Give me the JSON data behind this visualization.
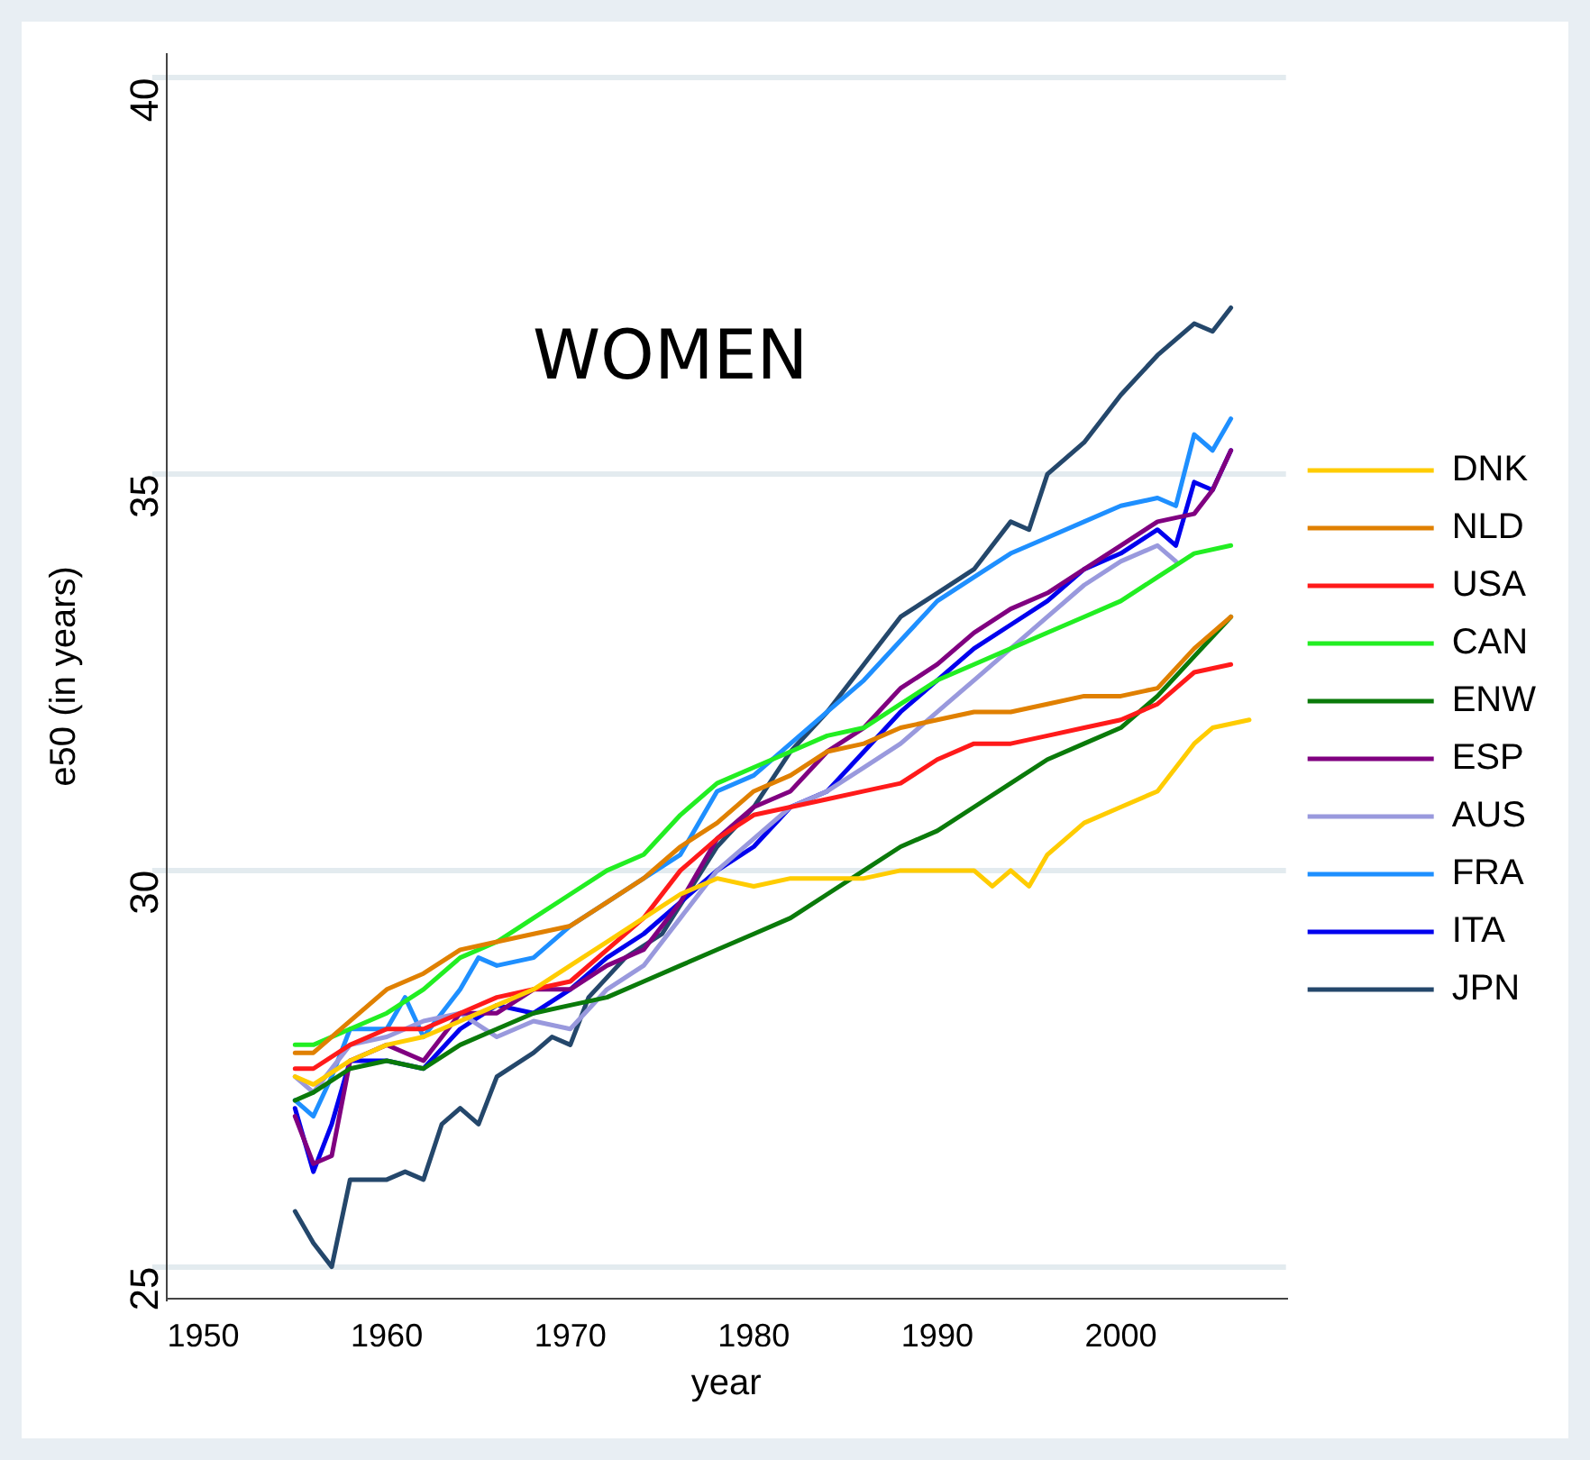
{
  "chart_data": {
    "type": "line",
    "xlabel": "year",
    "ylabel": "e50 (in years)",
    "annotations": [
      "WOMEN"
    ],
    "xlim": [
      1948,
      2009
    ],
    "xticks": [
      1950,
      1960,
      1970,
      1980,
      1990,
      2000
    ],
    "ylim": [
      24.6,
      40.3
    ],
    "yticks": [
      25,
      30,
      35,
      40
    ],
    "grid": "y",
    "legend": "right",
    "marker": "none",
    "line_style": "solid",
    "series": [
      {
        "name": "DNK",
        "color": "#ffcc00",
        "x": [
          1955,
          1956,
          1958,
          1960,
          1962,
          1964,
          1966,
          1968,
          1970,
          1972,
          1974,
          1976,
          1978,
          1980,
          1982,
          1984,
          1986,
          1988,
          1990,
          1992,
          1993,
          1994,
          1995,
          1996,
          1998,
          2000,
          2002,
          2004,
          2005,
          2007
        ],
        "values": [
          27.4,
          27.3,
          27.6,
          27.8,
          27.9,
          28.1,
          28.3,
          28.5,
          28.8,
          29.1,
          29.4,
          29.7,
          29.9,
          29.8,
          29.9,
          29.9,
          29.9,
          30.0,
          30.0,
          30.0,
          29.8,
          30.0,
          29.8,
          30.2,
          30.6,
          30.8,
          31.0,
          31.6,
          31.8,
          31.9
        ]
      },
      {
        "name": "NLD",
        "color": "#e08000",
        "x": [
          1955,
          1956,
          1958,
          1960,
          1962,
          1964,
          1966,
          1968,
          1970,
          1972,
          1974,
          1976,
          1978,
          1980,
          1982,
          1984,
          1986,
          1988,
          1990,
          1992,
          1994,
          1996,
          1998,
          2000,
          2002,
          2004,
          2006
        ],
        "values": [
          27.7,
          27.7,
          28.1,
          28.5,
          28.7,
          29.0,
          29.1,
          29.2,
          29.3,
          29.6,
          29.9,
          30.3,
          30.6,
          31.0,
          31.2,
          31.5,
          31.6,
          31.8,
          31.9,
          32.0,
          32.0,
          32.1,
          32.2,
          32.2,
          32.3,
          32.8,
          33.2
        ]
      },
      {
        "name": "USA",
        "color": "#ff1a1a",
        "x": [
          1955,
          1956,
          1958,
          1960,
          1962,
          1964,
          1966,
          1968,
          1970,
          1972,
          1974,
          1976,
          1978,
          1980,
          1982,
          1984,
          1986,
          1988,
          1990,
          1992,
          1994,
          1996,
          1998,
          2000,
          2002,
          2004,
          2006
        ],
        "values": [
          27.5,
          27.5,
          27.8,
          28.0,
          28.0,
          28.2,
          28.4,
          28.5,
          28.6,
          29.0,
          29.4,
          30.0,
          30.4,
          30.7,
          30.8,
          30.9,
          31.0,
          31.1,
          31.4,
          31.6,
          31.6,
          31.7,
          31.8,
          31.9,
          32.1,
          32.5,
          32.6
        ]
      },
      {
        "name": "CAN",
        "color": "#22ee22",
        "x": [
          1955,
          1956,
          1958,
          1960,
          1962,
          1964,
          1966,
          1968,
          1970,
          1972,
          1974,
          1976,
          1978,
          1980,
          1982,
          1984,
          1986,
          1988,
          1990,
          1992,
          1994,
          1996,
          1998,
          2000,
          2002,
          2004,
          2006
        ],
        "values": [
          27.8,
          27.8,
          28.0,
          28.2,
          28.5,
          28.9,
          29.1,
          29.4,
          29.7,
          30.0,
          30.2,
          30.7,
          31.1,
          31.3,
          31.5,
          31.7,
          31.8,
          32.1,
          32.4,
          32.6,
          32.8,
          33.0,
          33.2,
          33.4,
          33.7,
          34.0,
          34.1
        ]
      },
      {
        "name": "ENW",
        "color": "#0a7a0a",
        "x": [
          1955,
          1956,
          1958,
          1960,
          1962,
          1964,
          1966,
          1968,
          1970,
          1972,
          1974,
          1976,
          1978,
          1980,
          1982,
          1984,
          1986,
          1988,
          1990,
          1992,
          1994,
          1996,
          1998,
          2000,
          2002,
          2004,
          2006
        ],
        "values": [
          27.1,
          27.2,
          27.5,
          27.6,
          27.5,
          27.8,
          28.0,
          28.2,
          28.3,
          28.4,
          28.6,
          28.8,
          29.0,
          29.2,
          29.4,
          29.7,
          30.0,
          30.3,
          30.5,
          30.8,
          31.1,
          31.4,
          31.6,
          31.8,
          32.2,
          32.7,
          33.2
        ]
      },
      {
        "name": "ESP",
        "color": "#800080",
        "x": [
          1955,
          1956,
          1957,
          1958,
          1960,
          1962,
          1964,
          1966,
          1968,
          1970,
          1972,
          1974,
          1976,
          1978,
          1980,
          1982,
          1984,
          1986,
          1988,
          1990,
          1992,
          1994,
          1996,
          1998,
          2000,
          2002,
          2004,
          2005,
          2006
        ],
        "values": [
          26.9,
          26.3,
          26.4,
          27.6,
          27.8,
          27.6,
          28.2,
          28.2,
          28.5,
          28.5,
          28.8,
          29.0,
          29.6,
          30.4,
          30.8,
          31.0,
          31.5,
          31.8,
          32.3,
          32.6,
          33.0,
          33.3,
          33.5,
          33.8,
          34.1,
          34.4,
          34.5,
          34.8,
          35.3
        ]
      },
      {
        "name": "AUS",
        "color": "#9999dd",
        "x": [
          1955,
          1956,
          1958,
          1960,
          1962,
          1964,
          1966,
          1968,
          1970,
          1972,
          1974,
          1976,
          1978,
          1980,
          1982,
          1984,
          1986,
          1988,
          1990,
          1992,
          1994,
          1996,
          1998,
          2000,
          2002,
          2003
        ],
        "values": [
          27.4,
          27.2,
          27.8,
          27.9,
          28.1,
          28.2,
          27.9,
          28.1,
          28.0,
          28.5,
          28.8,
          29.4,
          30.0,
          30.4,
          30.8,
          31.0,
          31.3,
          31.6,
          32.0,
          32.4,
          32.8,
          33.2,
          33.6,
          33.9,
          34.1,
          33.9
        ]
      },
      {
        "name": "FRA",
        "color": "#1e8fff",
        "x": [
          1955,
          1956,
          1957,
          1958,
          1960,
          1961,
          1962,
          1964,
          1965,
          1966,
          1968,
          1970,
          1972,
          1974,
          1976,
          1978,
          1980,
          1982,
          1984,
          1986,
          1988,
          1990,
          1992,
          1994,
          1996,
          1998,
          2000,
          2002,
          2003,
          2004,
          2005,
          2006
        ],
        "values": [
          27.1,
          26.9,
          27.4,
          28.0,
          28.0,
          28.4,
          27.9,
          28.5,
          28.9,
          28.8,
          28.9,
          29.3,
          29.6,
          29.9,
          30.2,
          31.0,
          31.2,
          31.6,
          32.0,
          32.4,
          32.9,
          33.4,
          33.7,
          34.0,
          34.2,
          34.4,
          34.6,
          34.7,
          34.6,
          35.5,
          35.3,
          35.7
        ]
      },
      {
        "name": "ITA",
        "color": "#0000ee",
        "x": [
          1955,
          1956,
          1957,
          1958,
          1960,
          1962,
          1964,
          1966,
          1968,
          1970,
          1972,
          1974,
          1976,
          1978,
          1980,
          1982,
          1984,
          1986,
          1988,
          1990,
          1992,
          1994,
          1996,
          1998,
          2000,
          2002,
          2003,
          2004,
          2005,
          2006
        ],
        "values": [
          27.0,
          26.2,
          26.8,
          27.6,
          27.6,
          27.5,
          28.0,
          28.3,
          28.2,
          28.5,
          28.9,
          29.2,
          29.6,
          30.0,
          30.3,
          30.8,
          31.0,
          31.5,
          32.0,
          32.4,
          32.8,
          33.1,
          33.4,
          33.8,
          34.0,
          34.3,
          34.1,
          34.9,
          34.8,
          35.3
        ]
      },
      {
        "name": "JPN",
        "color": "#24476b",
        "x": [
          1955,
          1956,
          1957,
          1958,
          1960,
          1961,
          1962,
          1963,
          1964,
          1965,
          1966,
          1968,
          1969,
          1970,
          1971,
          1973,
          1975,
          1978,
          1980,
          1982,
          1984,
          1986,
          1988,
          1990,
          1992,
          1994,
          1995,
          1996,
          1998,
          2000,
          2002,
          2004,
          2005,
          2006
        ],
        "values": [
          25.7,
          25.3,
          25.0,
          26.1,
          26.1,
          26.2,
          26.1,
          26.8,
          27.0,
          26.8,
          27.4,
          27.7,
          27.9,
          27.8,
          28.4,
          28.9,
          29.2,
          30.3,
          30.8,
          31.5,
          32.0,
          32.6,
          33.2,
          33.5,
          33.8,
          34.4,
          34.3,
          35.0,
          35.4,
          36.0,
          36.5,
          36.9,
          36.8,
          37.1
        ]
      }
    ]
  }
}
